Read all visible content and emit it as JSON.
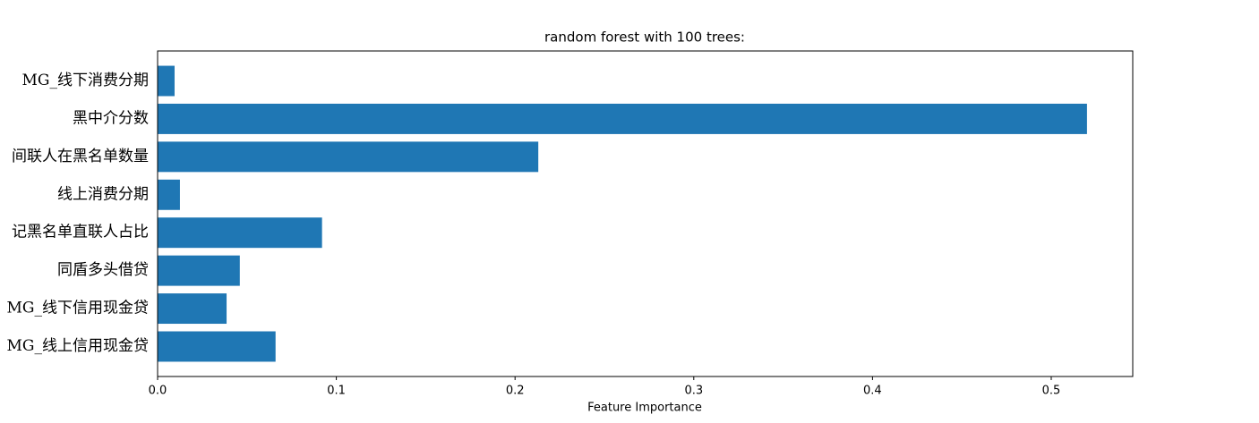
{
  "chart_data": {
    "type": "barh",
    "title": "random forest with 100 trees:",
    "xlabel": "Feature Importance",
    "categories": [
      "MG_线下消费分期",
      "黑中介分数",
      "间联人在黑名单数量",
      "线上消费分期",
      "记黑名单直联人占比",
      "同盾多头借贷",
      "MG_线下信用现金贷",
      "MG_线上信用现金贷"
    ],
    "values": [
      0.0095,
      0.52,
      0.213,
      0.0125,
      0.092,
      0.046,
      0.0386,
      0.066
    ],
    "color": "#1f77b4",
    "xlim": [
      0,
      0.5456
    ],
    "xticks": [
      {
        "value": 0,
        "label": "0.0"
      },
      0.1,
      0.2,
      0.3,
      0.4,
      0.5
    ]
  }
}
